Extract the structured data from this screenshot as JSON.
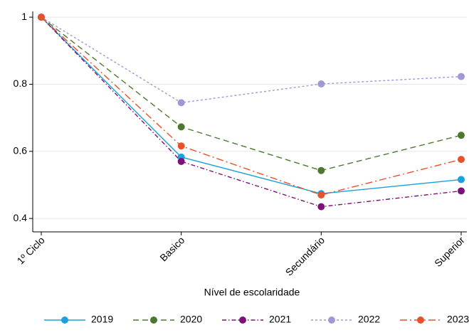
{
  "chart_data": {
    "type": "line",
    "x_label": "Nível de escolaridade",
    "categories": [
      "1º Ciclo",
      "Basico",
      "Secundário",
      "Superior"
    ],
    "series": [
      {
        "name": "2019",
        "color": "#1ea0dc",
        "dash": "none",
        "values": [
          1,
          0.583,
          0.474,
          0.516
        ]
      },
      {
        "name": "2020",
        "color": "#4b7a2e",
        "dash": "8,5",
        "values": [
          1,
          0.673,
          0.543,
          0.648
        ]
      },
      {
        "name": "2021",
        "color": "#7b1279",
        "dash": "6,3,1.5,3",
        "values": [
          1,
          0.57,
          0.435,
          0.482
        ]
      },
      {
        "name": "2022",
        "color": "#9d98d6",
        "dash": "3,3",
        "values": [
          1,
          0.745,
          0.801,
          0.823
        ]
      },
      {
        "name": "2023",
        "color": "#e7512b",
        "dash": "10,4,2,4",
        "values": [
          1,
          0.616,
          0.47,
          0.576
        ]
      }
    ],
    "ylim": [
      0.377,
      1.013
    ],
    "yticks": [
      0.4,
      0.6,
      0.8,
      1
    ],
    "grid": true,
    "legend": "bottom"
  }
}
